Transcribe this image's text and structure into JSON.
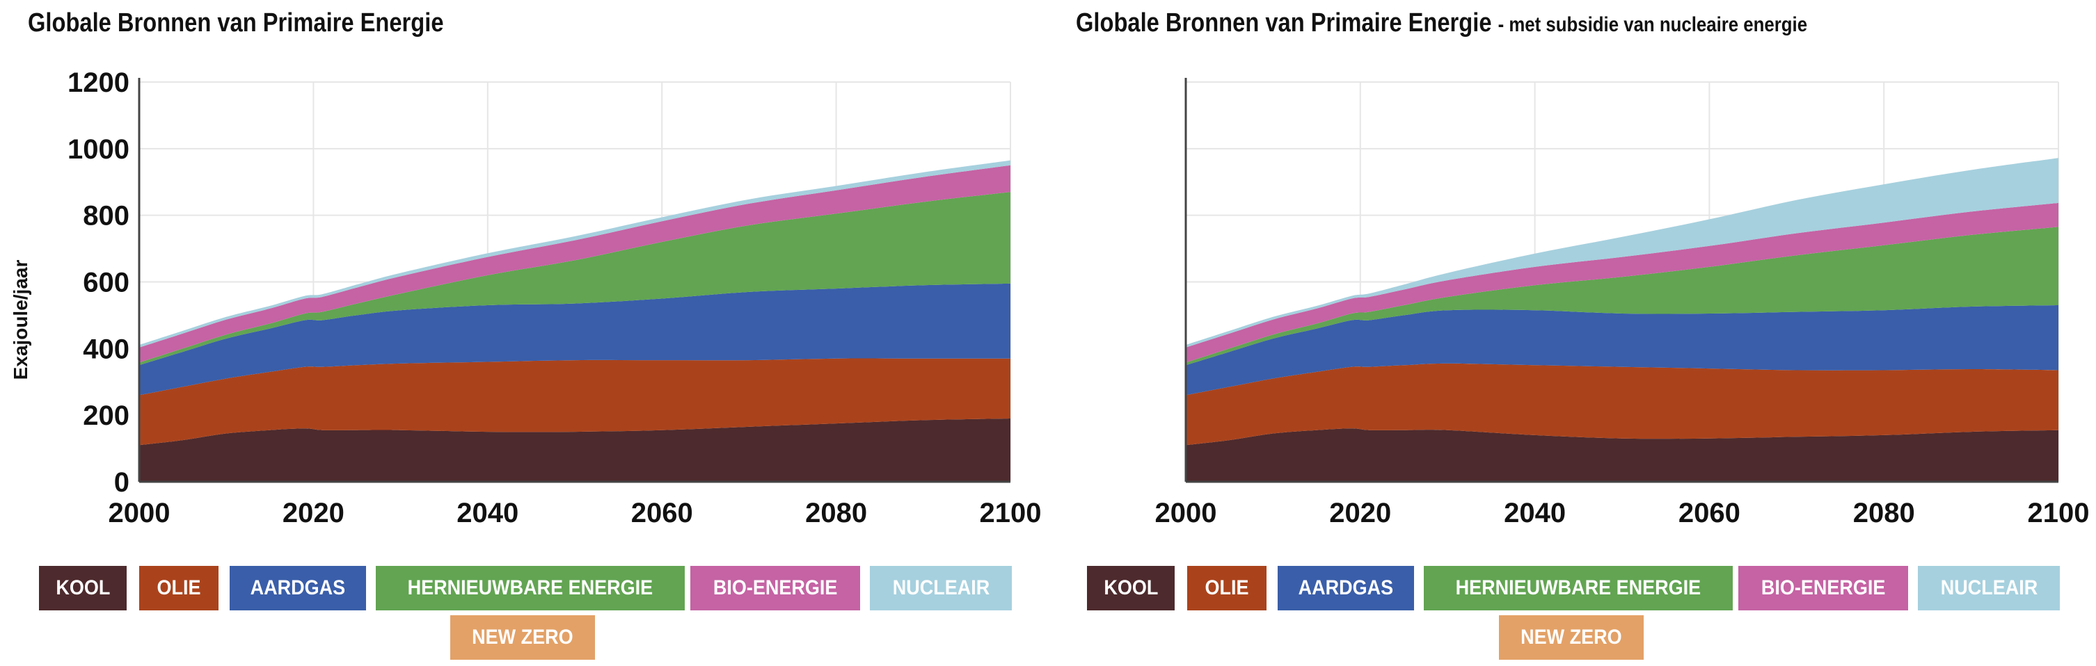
{
  "titles": {
    "left": "Globale Bronnen van Primaire Energie",
    "right": "Globale Bronnen van Primaire Energie",
    "right_sub": "- met subsidie van nucleaire energie"
  },
  "ylabel": "Exajoule/jaar",
  "legend": [
    {
      "key": "kool",
      "label": "KOOL",
      "color": "#4d2a2d"
    },
    {
      "key": "olie",
      "label": "OLIE",
      "color": "#aa431c"
    },
    {
      "key": "aardgas",
      "label": "AARDGAS",
      "color": "#3a5ea9"
    },
    {
      "key": "hernieuwbaar",
      "label": "HERNIEUWBARE ENERGIE",
      "color": "#62a452"
    },
    {
      "key": "bio",
      "label": "BIO-ENERGIE",
      "color": "#c563a4"
    },
    {
      "key": "nucleair",
      "label": "NUCLEAIR",
      "color": "#a6d0de"
    },
    {
      "key": "newzero",
      "label": "NEW ZERO",
      "color": "#e3a167"
    }
  ],
  "chart_data": [
    {
      "type": "area",
      "title": "Globale Bronnen van Primaire Energie",
      "ylabel": "Exajoule/jaar",
      "ylim": [
        0,
        1200
      ],
      "xlim": [
        2000,
        2100
      ],
      "yticks": [
        0,
        200,
        400,
        600,
        800,
        1000,
        1200
      ],
      "xticks": [
        2000,
        2020,
        2040,
        2060,
        2080,
        2100
      ],
      "grid": true,
      "stacked": true,
      "x": [
        2000,
        2005,
        2010,
        2015,
        2019,
        2021,
        2025,
        2030,
        2040,
        2050,
        2060,
        2070,
        2080,
        2090,
        2100
      ],
      "series": [
        {
          "name": "KOOL",
          "values": [
            110,
            125,
            145,
            155,
            160,
            155,
            155,
            155,
            150,
            150,
            155,
            165,
            175,
            185,
            190
          ]
        },
        {
          "name": "OLIE",
          "values": [
            150,
            160,
            165,
            175,
            185,
            190,
            195,
            200,
            210,
            215,
            210,
            200,
            195,
            185,
            180
          ]
        },
        {
          "name": "AARDGAS",
          "values": [
            90,
            105,
            120,
            130,
            140,
            140,
            150,
            160,
            170,
            170,
            185,
            205,
            210,
            220,
            225
          ]
        },
        {
          "name": "HERNIEUWBARE ENERGIE",
          "values": [
            8,
            10,
            12,
            15,
            20,
            25,
            35,
            50,
            90,
            130,
            170,
            200,
            225,
            250,
            275
          ]
        },
        {
          "name": "BIO-ENERGIE",
          "values": [
            45,
            45,
            45,
            45,
            45,
            45,
            48,
            52,
            55,
            60,
            62,
            65,
            70,
            75,
            80
          ]
        },
        {
          "name": "NUCLEAIR",
          "values": [
            8,
            8,
            8,
            8,
            8,
            8,
            9,
            10,
            11,
            12,
            12,
            13,
            13,
            14,
            15
          ]
        }
      ]
    },
    {
      "type": "area",
      "title": "Globale Bronnen van Primaire Energie",
      "subtitle": "- met subsidie van nucleaire energie",
      "ylim": [
        0,
        1200
      ],
      "xlim": [
        2000,
        2100
      ],
      "xticks": [
        2000,
        2020,
        2040,
        2060,
        2080,
        2100
      ],
      "grid": true,
      "stacked": true,
      "x": [
        2000,
        2005,
        2010,
        2015,
        2019,
        2021,
        2025,
        2030,
        2040,
        2050,
        2060,
        2070,
        2080,
        2090,
        2100
      ],
      "series": [
        {
          "name": "KOOL",
          "values": [
            110,
            125,
            145,
            155,
            160,
            155,
            155,
            155,
            140,
            130,
            130,
            135,
            140,
            150,
            155
          ]
        },
        {
          "name": "OLIE",
          "values": [
            150,
            160,
            165,
            175,
            185,
            190,
            195,
            200,
            210,
            215,
            210,
            200,
            195,
            188,
            180
          ]
        },
        {
          "name": "AARDGAS",
          "values": [
            90,
            105,
            120,
            130,
            140,
            140,
            150,
            160,
            165,
            160,
            165,
            175,
            180,
            188,
            195
          ]
        },
        {
          "name": "HERNIEUWBARE ENERGIE",
          "values": [
            8,
            10,
            12,
            15,
            20,
            25,
            30,
            40,
            75,
            110,
            140,
            170,
            195,
            215,
            235
          ]
        },
        {
          "name": "BIO-ENERGIE",
          "values": [
            45,
            45,
            45,
            45,
            45,
            45,
            47,
            50,
            55,
            60,
            63,
            66,
            68,
            70,
            72
          ]
        },
        {
          "name": "NUCLEAIR",
          "values": [
            8,
            8,
            8,
            8,
            8,
            10,
            15,
            22,
            40,
            60,
            80,
            100,
            115,
            125,
            135
          ]
        }
      ]
    }
  ]
}
